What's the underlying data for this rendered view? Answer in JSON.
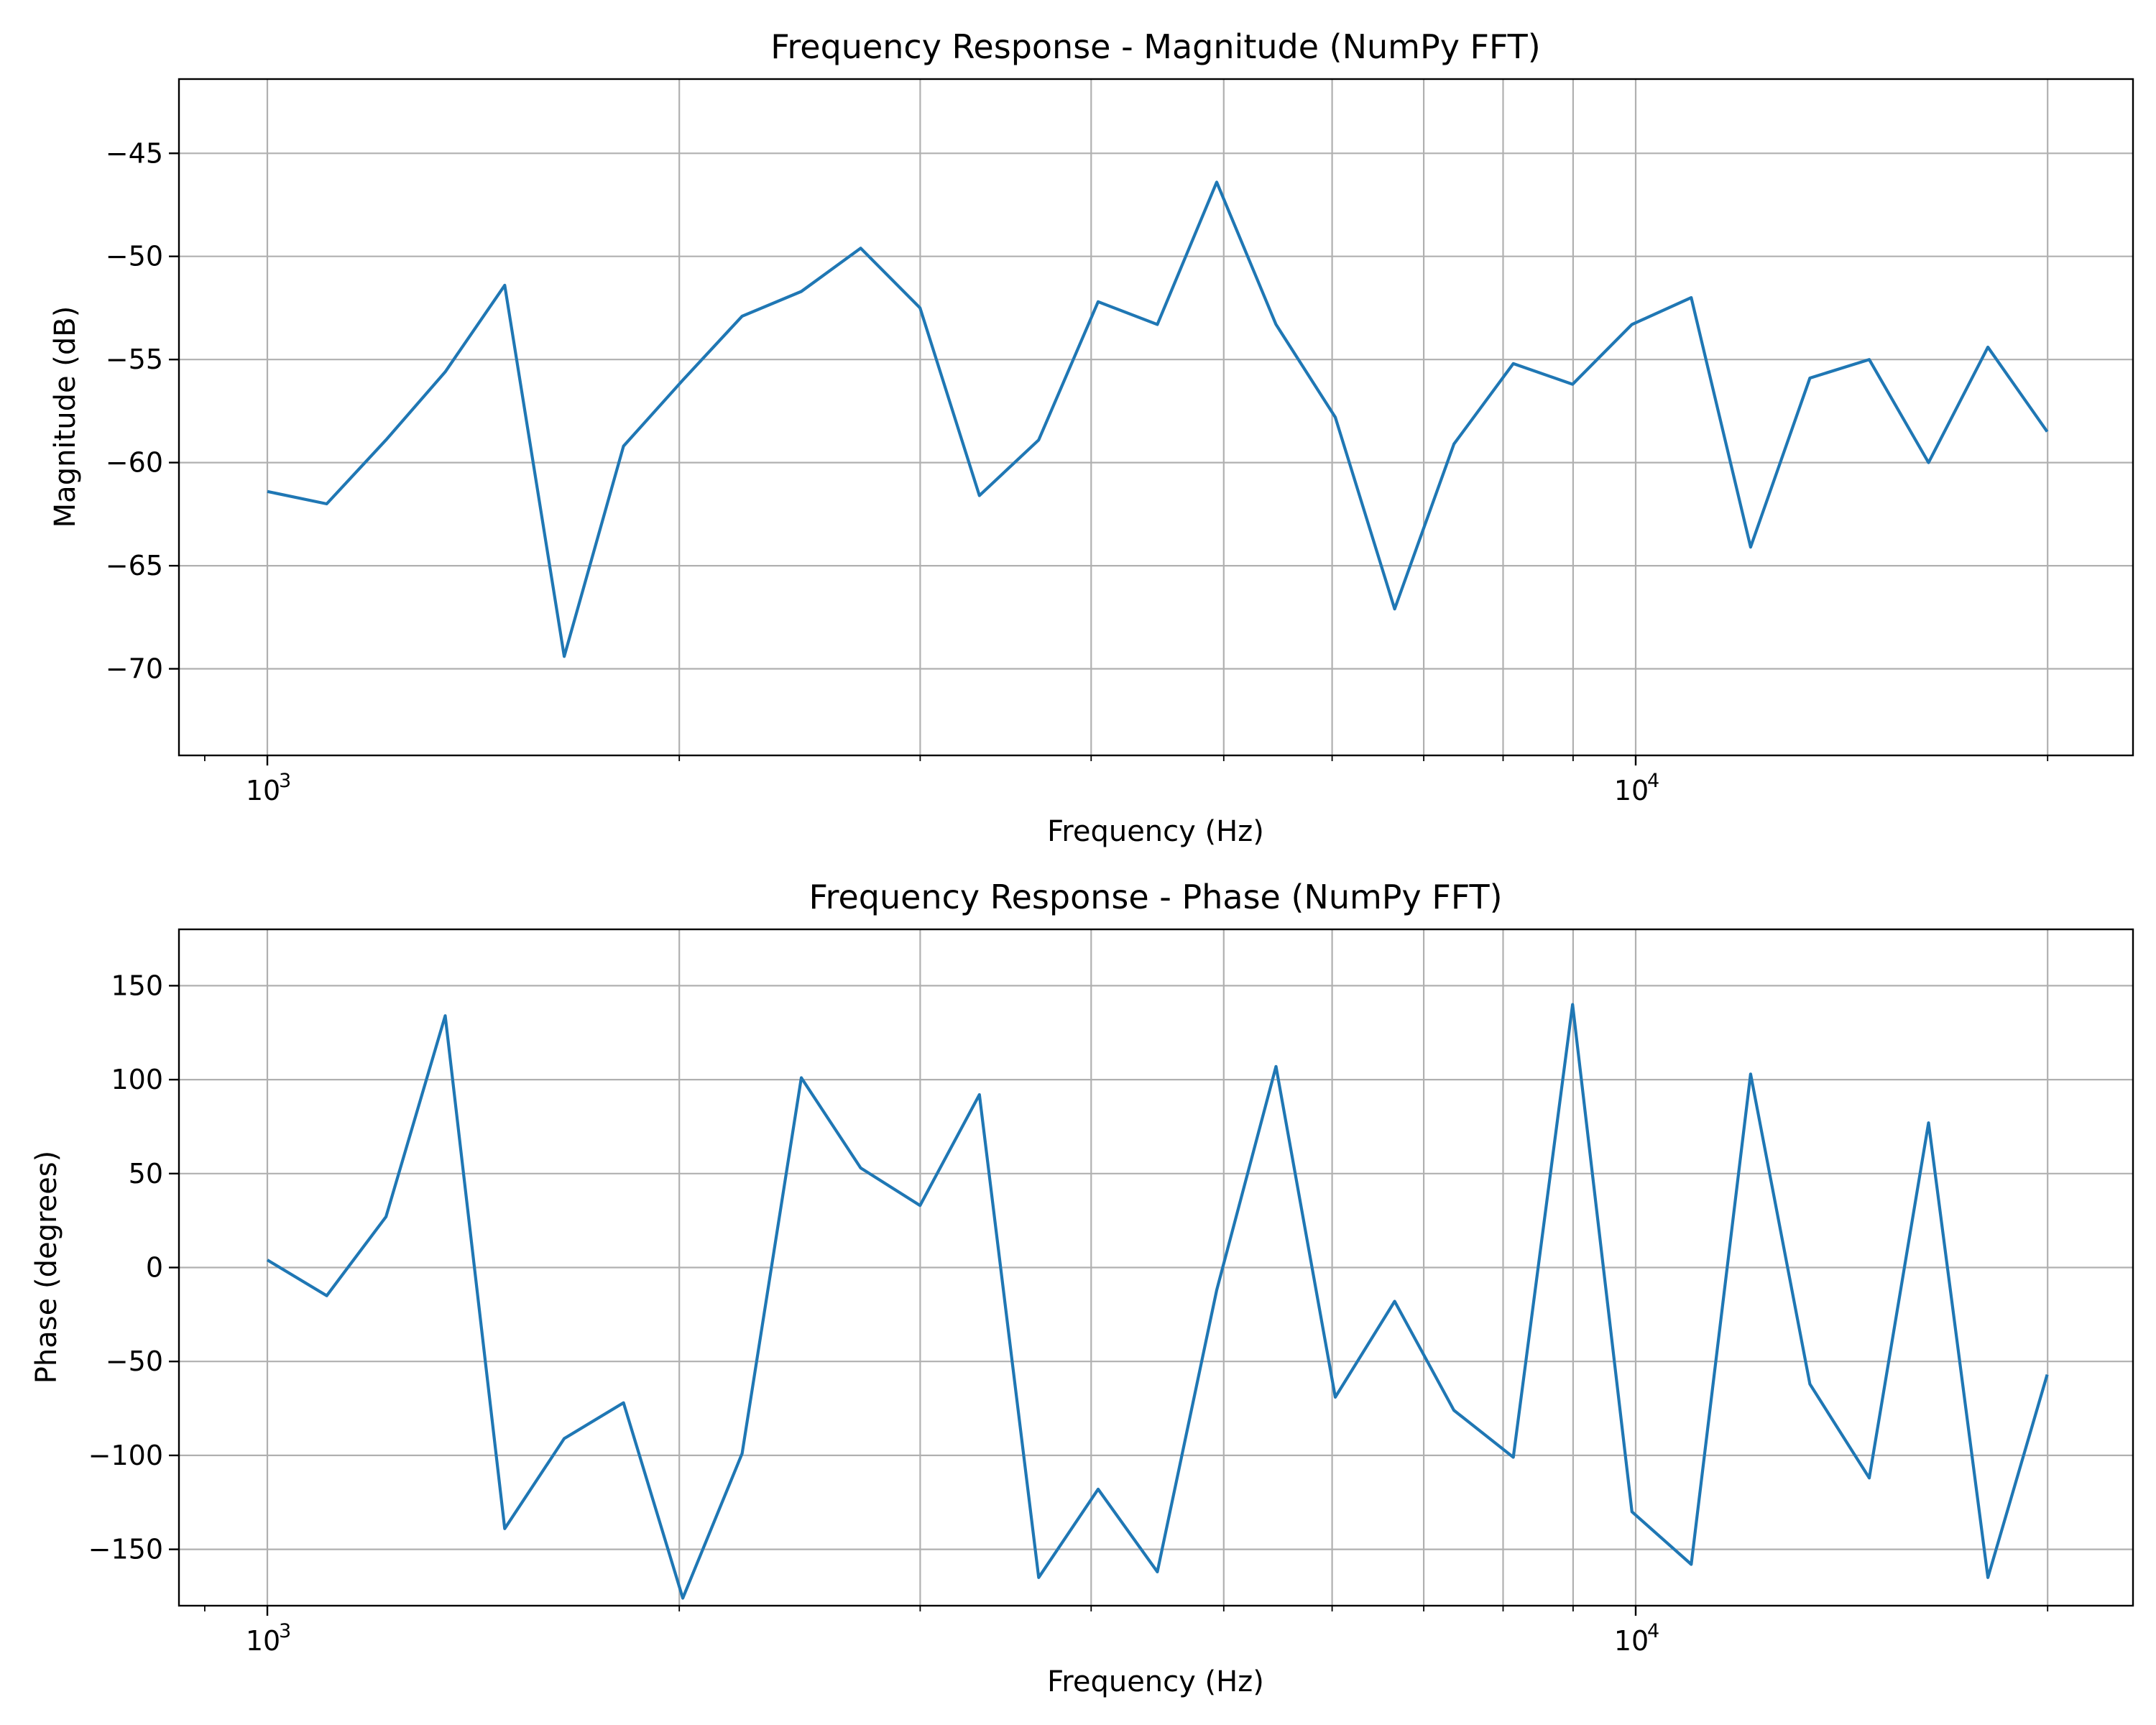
{
  "chart_data": [
    {
      "type": "line",
      "title": "Frequency Response - Magnitude (NumPy FFT)",
      "xlabel": "Frequency (Hz)",
      "ylabel": "Magnitude (dB)",
      "x_scale": "log",
      "x_tick_labels": [
        {
          "value": 1000,
          "base": "10",
          "exp": "3"
        },
        {
          "value": 10000,
          "base": "10",
          "exp": "4"
        }
      ],
      "y_ticks": [
        -45,
        -50,
        -55,
        -60,
        -65,
        -70
      ],
      "y_tick_labels": [
        "−45",
        "−50",
        "−55",
        "−60",
        "−65",
        "−70"
      ],
      "ylim": [
        -74.2,
        -41.4
      ],
      "grid": true,
      "color": "#1f77b4",
      "x": [
        1000,
        1105,
        1221,
        1349,
        1491,
        1648,
        1821,
        2012,
        2223,
        2456,
        2714,
        2999,
        3314,
        3662,
        4047,
        4471,
        4941,
        5459,
        6032,
        6666,
        7365,
        8139,
        8993,
        9937,
        10980,
        12133,
        13407,
        14814,
        16370,
        18088,
        19987
      ],
      "values": [
        -61.4,
        -62.0,
        -58.9,
        -55.6,
        -51.4,
        -69.4,
        -59.2,
        -56.0,
        -52.9,
        -51.7,
        -49.6,
        -52.5,
        -61.6,
        -58.9,
        -52.2,
        -53.3,
        -46.4,
        -53.3,
        -57.8,
        -67.1,
        -59.1,
        -55.2,
        -56.2,
        -53.3,
        -52.0,
        -64.1,
        -55.9,
        -55.0,
        -60.0,
        -54.4,
        -58.5
      ]
    },
    {
      "type": "line",
      "title": "Frequency Response - Phase (NumPy FFT)",
      "xlabel": "Frequency (Hz)",
      "ylabel": "Phase (degrees)",
      "x_scale": "log",
      "x_tick_labels": [
        {
          "value": 1000,
          "base": "10",
          "exp": "3"
        },
        {
          "value": 10000,
          "base": "10",
          "exp": "4"
        }
      ],
      "y_ticks": [
        150,
        100,
        50,
        0,
        -50,
        -100,
        -150
      ],
      "y_tick_labels": [
        "150",
        "100",
        "50",
        "0",
        "−50",
        "−100",
        "−150"
      ],
      "ylim": [
        -180,
        180
      ],
      "grid": true,
      "color": "#1f77b4",
      "x": [
        1000,
        1105,
        1221,
        1349,
        1491,
        1648,
        1821,
        2012,
        2223,
        2456,
        2714,
        2999,
        3314,
        3662,
        4047,
        4471,
        4941,
        5459,
        6032,
        6666,
        7365,
        8139,
        8993,
        9937,
        10980,
        12133,
        13407,
        14814,
        16370,
        18088,
        19987
      ],
      "values": [
        4,
        -15,
        27,
        134,
        -139,
        -91,
        -72,
        -176,
        -99,
        101,
        53,
        33,
        92,
        -165,
        -118,
        -162,
        -12,
        107,
        -69,
        -18,
        -76,
        -101,
        140,
        -130,
        -158,
        103,
        -62,
        -112,
        77,
        -165,
        -57
      ]
    }
  ]
}
